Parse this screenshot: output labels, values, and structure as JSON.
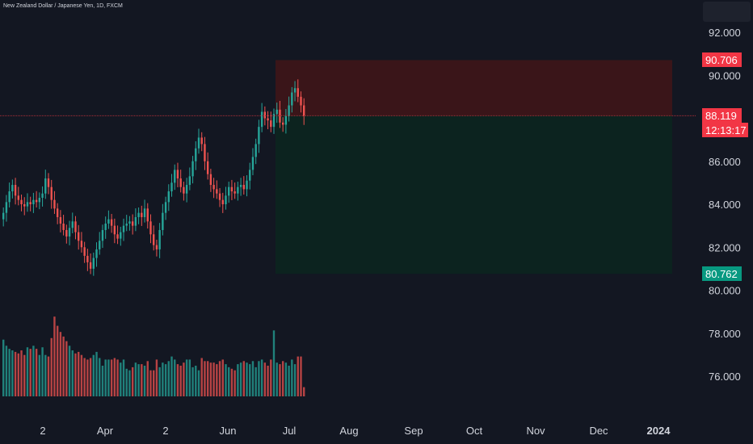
{
  "symbol_title": "New Zealand Dollar / Japanese Yen, 1D, FXCM",
  "price_labels": {
    "stop": {
      "value": "90.706",
      "color": "#f23645"
    },
    "current": {
      "value": "88.119",
      "countdown": "12:13:17",
      "color": "#f23645"
    },
    "target": {
      "value": "80.762",
      "color": "#089981"
    }
  },
  "colors": {
    "background": "#131722",
    "up": "#26a69a",
    "down": "#ef5350",
    "stop_zone": "#3a1519",
    "target_zone": "#0c231f"
  },
  "chart_data": {
    "type": "candlestick",
    "title": "New Zealand Dollar / Japanese Yen, 1D, FXCM",
    "y_ticks": [
      "92.000",
      "90.000",
      "86.000",
      "84.000",
      "82.000",
      "80.000",
      "78.000",
      "76.000"
    ],
    "x_ticks": [
      "2",
      "Apr",
      "2",
      "Jun",
      "Jul",
      "Aug",
      "Sep",
      "Oct",
      "Nov",
      "Dec",
      "2024"
    ],
    "ylim": [
      74.6,
      92.8
    ],
    "position": {
      "type": "short",
      "entry": 88.119,
      "stop": 90.706,
      "target": 80.762
    },
    "closes": [
      83.6,
      84.1,
      84.6,
      84.9,
      84.4,
      84.2,
      84.0,
      83.9,
      84.1,
      84.0,
      84.2,
      84.1,
      84.3,
      84.5,
      85.2,
      84.8,
      84.2,
      83.8,
      83.4,
      83.1,
      82.8,
      82.5,
      82.9,
      83.2,
      82.7,
      82.3,
      82.0,
      81.6,
      81.3,
      81.0,
      81.5,
      81.9,
      82.3,
      82.8,
      83.1,
      83.3,
      83.0,
      82.6,
      82.4,
      82.7,
      83.0,
      83.1,
      83.2,
      83.0,
      83.4,
      83.6,
      83.4,
      83.8,
      83.2,
      82.6,
      82.1,
      81.9,
      82.8,
      83.6,
      84.1,
      84.6,
      85.0,
      85.6,
      85.2,
      84.8,
      84.5,
      84.9,
      85.3,
      86.0,
      86.6,
      87.1,
      86.8,
      86.0,
      85.4,
      84.9,
      84.7,
      84.5,
      84.2,
      84.0,
      84.4,
      84.8,
      84.6,
      84.5,
      84.8,
      84.9,
      84.7,
      85.1,
      85.6,
      86.2,
      86.8,
      87.6,
      88.3,
      88.0,
      87.9,
      87.6,
      88.2,
      88.4,
      87.8,
      87.7,
      88.1,
      88.6,
      89.2,
      89.4,
      89.0,
      88.6,
      88.1
    ],
    "volumes": [
      0.37,
      0.33,
      0.31,
      0.3,
      0.29,
      0.28,
      0.3,
      0.27,
      0.32,
      0.31,
      0.33,
      0.31,
      0.27,
      0.32,
      0.27,
      0.26,
      0.38,
      0.52,
      0.46,
      0.42,
      0.39,
      0.36,
      0.33,
      0.3,
      0.28,
      0.29,
      0.27,
      0.25,
      0.24,
      0.25,
      0.27,
      0.29,
      0.25,
      0.2,
      0.24,
      0.24,
      0.24,
      0.25,
      0.24,
      0.22,
      0.24,
      0.18,
      0.17,
      0.19,
      0.22,
      0.21,
      0.21,
      0.2,
      0.23,
      0.17,
      0.17,
      0.24,
      0.19,
      0.22,
      0.21,
      0.23,
      0.26,
      0.24,
      0.21,
      0.2,
      0.22,
      0.24,
      0.24,
      0.19,
      0.2,
      0.17,
      0.25,
      0.23,
      0.23,
      0.22,
      0.22,
      0.21,
      0.23,
      0.24,
      0.21,
      0.19,
      0.18,
      0.17,
      0.21,
      0.22,
      0.23,
      0.22,
      0.21,
      0.23,
      0.19,
      0.23,
      0.24,
      0.22,
      0.2,
      0.24,
      0.43,
      0.22,
      0.21,
      0.23,
      0.22,
      0.2,
      0.24,
      0.21,
      0.26,
      0.26,
      0.06
    ]
  }
}
